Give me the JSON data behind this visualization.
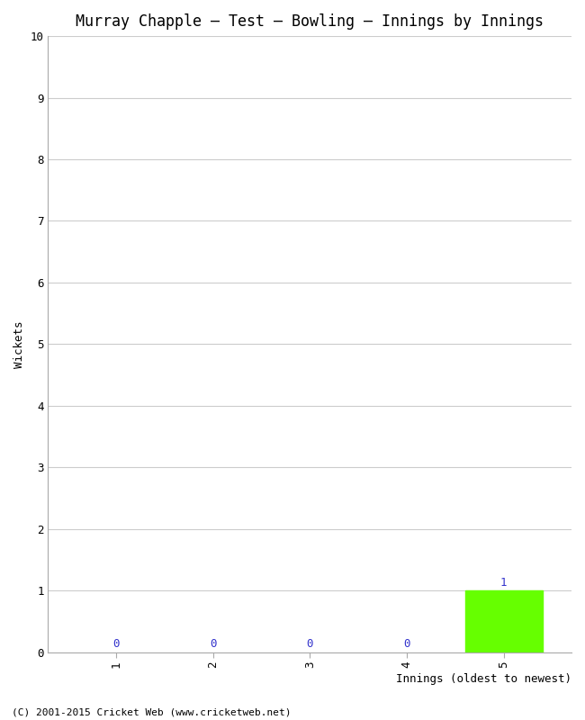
{
  "title": "Murray Chapple – Test – Bowling – Innings by Innings",
  "xlabel": "Innings (oldest to newest)",
  "ylabel": "Wickets",
  "categories": [
    "1",
    "2",
    "3",
    "4",
    "5"
  ],
  "values": [
    0,
    0,
    0,
    0,
    1
  ],
  "bar_color": "#66ff00",
  "ylim": [
    0,
    10
  ],
  "yticks": [
    0,
    1,
    2,
    3,
    4,
    5,
    6,
    7,
    8,
    9,
    10
  ],
  "background_color": "#ffffff",
  "grid_color": "#cccccc",
  "value_label_color": "#3333cc",
  "footer": "(C) 2001-2015 Cricket Web (www.cricketweb.net)",
  "title_fontsize": 12,
  "axis_label_fontsize": 9,
  "tick_fontsize": 9,
  "footer_fontsize": 8
}
